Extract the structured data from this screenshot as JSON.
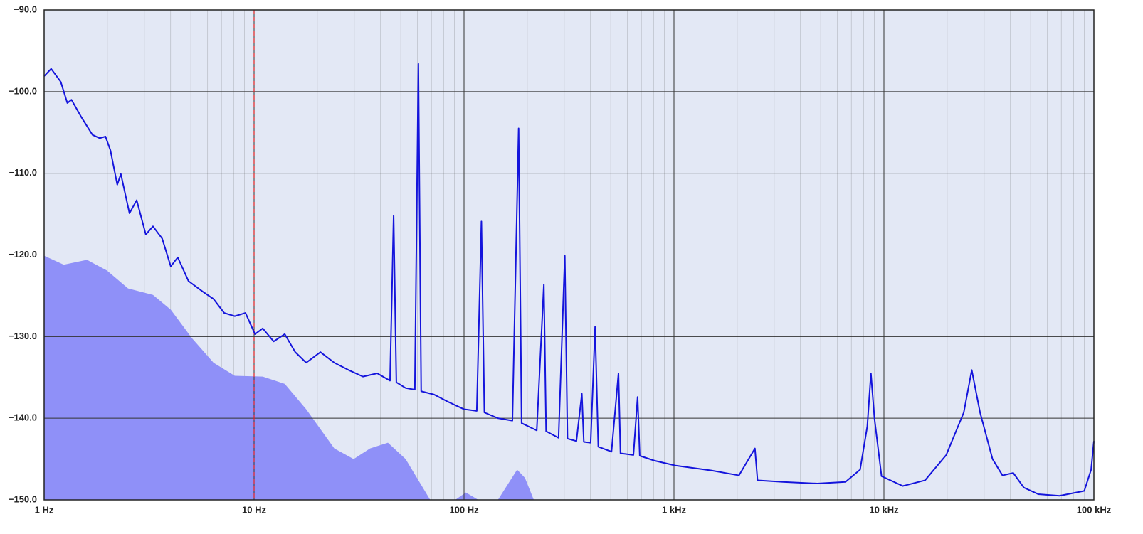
{
  "chart_data": {
    "type": "line",
    "xscale": "log",
    "xlim": [
      1,
      100000
    ],
    "ylim": [
      -150,
      -90
    ],
    "xticks": [
      {
        "value": 1,
        "label": "1 Hz"
      },
      {
        "value": 10,
        "label": "10 Hz"
      },
      {
        "value": 100,
        "label": "100 Hz"
      },
      {
        "value": 1000,
        "label": "1 kHz"
      },
      {
        "value": 10000,
        "label": "10 kHz"
      },
      {
        "value": 100000,
        "label": "100 kHz"
      }
    ],
    "xminorticks": [
      2,
      3,
      4,
      5,
      6,
      7,
      8,
      9,
      20,
      30,
      40,
      50,
      60,
      70,
      80,
      90,
      200,
      300,
      400,
      500,
      600,
      700,
      800,
      900,
      2000,
      3000,
      4000,
      5000,
      6000,
      7000,
      8000,
      9000,
      20000,
      30000,
      40000,
      50000,
      60000,
      70000,
      80000,
      90000
    ],
    "yticks": [
      {
        "value": -150,
        "label": "−150.0"
      },
      {
        "value": -140,
        "label": "−140.0"
      },
      {
        "value": -130,
        "label": "−130.0"
      },
      {
        "value": -120,
        "label": "−120.0"
      },
      {
        "value": -110,
        "label": "−110.0"
      },
      {
        "value": -100,
        "label": "−100.0"
      },
      {
        "value": -90,
        "label": "−90.0"
      }
    ],
    "grid": true,
    "background": "#e3e8f5",
    "vline": {
      "x": 10,
      "color": "#e02020",
      "dashed": true
    },
    "series": [
      {
        "color": "#8f90f8",
        "fill": true,
        "x": [
          1,
          1.24,
          1.6,
          1.99,
          2.51,
          3.3,
          4.01,
          5.06,
          6.41,
          8.09,
          11,
          14,
          17.7,
          24.1,
          29.8,
          35.7,
          43.4,
          52.7,
          69,
          90.8,
          102,
          117,
          145,
          179,
          195,
          215
        ],
        "values": [
          -120.1,
          -121.2,
          -120.6,
          -121.9,
          -124.1,
          -124.9,
          -126.7,
          -130.2,
          -133.2,
          -134.8,
          -134.9,
          -135.8,
          -138.9,
          -143.7,
          -145.0,
          -143.7,
          -143.0,
          -145.0,
          -150,
          -150,
          -149.1,
          -150,
          -150,
          -146.3,
          -147.3,
          -150
        ]
      },
      {
        "color": "#1414dc",
        "fill": false,
        "x": [
          1,
          1.08,
          1.2,
          1.29,
          1.35,
          1.51,
          1.7,
          1.84,
          1.96,
          2.07,
          2.23,
          2.32,
          2.55,
          2.76,
          3.05,
          3.3,
          3.65,
          4.01,
          4.33,
          4.87,
          5.7,
          6.41,
          7.2,
          8.09,
          9.1,
          10.1,
          11,
          12.4,
          14,
          15.7,
          17.7,
          20.7,
          24.1,
          28.2,
          33,
          38.6,
          44.4,
          46.2,
          47.6,
          52.7,
          58.3,
          60.6,
          62.5,
          72,
          84.1,
          100,
          115,
          121,
          125,
          145,
          170,
          182,
          188,
          222,
          240,
          246,
          282,
          302,
          311,
          343,
          364,
          372,
          401,
          421,
          436,
          504,
          544,
          556,
          641,
          671,
          687,
          808,
          1017,
          1505,
          2040,
          2430,
          2500,
          3300,
          4820,
          6560,
          7700,
          8330,
          8670,
          9020,
          9740,
          12300,
          15700,
          19800,
          24000,
          26200,
          28700,
          32900,
          36700,
          41300,
          46400,
          54300,
          68600,
          90000,
          97000,
          100000
        ],
        "values": [
          -98.1,
          -97.2,
          -98.8,
          -101.4,
          -101.0,
          -103.2,
          -105.3,
          -105.7,
          -105.5,
          -107.2,
          -111.4,
          -110.1,
          -114.9,
          -113.3,
          -117.5,
          -116.5,
          -118.0,
          -121.4,
          -120.3,
          -123.2,
          -124.5,
          -125.4,
          -127.1,
          -127.5,
          -127.1,
          -129.7,
          -129.0,
          -130.6,
          -129.7,
          -131.9,
          -133.2,
          -131.9,
          -133.2,
          -134.1,
          -134.9,
          -134.5,
          -135.4,
          -115.2,
          -135.6,
          -136.3,
          -136.5,
          -96.6,
          -136.7,
          -137.1,
          -138.0,
          -138.9,
          -139.1,
          -115.9,
          -139.3,
          -140.0,
          -140.3,
          -104.5,
          -140.6,
          -141.5,
          -123.6,
          -141.6,
          -142.4,
          -120.1,
          -142.5,
          -142.8,
          -137.0,
          -142.9,
          -143.0,
          -128.8,
          -143.5,
          -144.1,
          -134.5,
          -144.3,
          -144.5,
          -137.4,
          -144.6,
          -145.2,
          -145.8,
          -146.4,
          -147.0,
          -143.7,
          -147.6,
          -147.8,
          -148.0,
          -147.8,
          -146.3,
          -141.0,
          -134.5,
          -140.1,
          -147.1,
          -148.3,
          -147.6,
          -144.5,
          -139.3,
          -134.1,
          -139.3,
          -145.0,
          -147.0,
          -146.7,
          -148.5,
          -149.3,
          -149.5,
          -148.9,
          -146.3,
          -142.8
        ]
      }
    ]
  }
}
